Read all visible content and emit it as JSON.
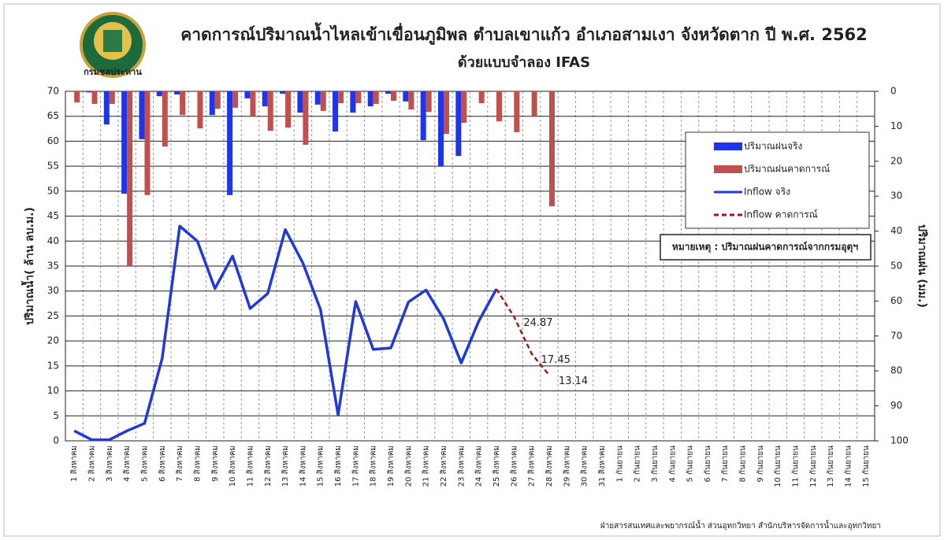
{
  "chart_data": {
    "type": "combo",
    "title": "คาดการณ์ปริมาณน้ำไหลเข้าเขื่อนภูมิพล ตำบลเขาแก้ว อำเภอสามเงา จังหวัดตาก ปี พ.ศ. 2562",
    "subtitle": "ด้วยแบบจำลอง IFAS",
    "logo_text": "กรมชลประทาน",
    "y_label": "ปริมาณน้ำ( ล้าน ลบ.ม.)",
    "y2_label": "ปริมาณฝน (มม.)",
    "note": "หมายเหตุ : ปริมาณฝนคาดการณ์จากกรมอุตุฯ",
    "footer": "ฝ่ายสารสนเทศและพยากรณ์น้ำ ส่วนอุทกวิทยา สำนักบริหารจัดการน้ำและอุทกวิทยา",
    "categories": [
      "1 สิงหาคม",
      "2 สิงหาคม",
      "3 สิงหาคม",
      "4 สิงหาคม",
      "5 สิงหาคม",
      "6 สิงหาคม",
      "7 สิงหาคม",
      "8 สิงหาคม",
      "9 สิงหาคม",
      "10 สิงหาคม",
      "11 สิงหาคม",
      "12 สิงหาคม",
      "13 สิงหาคม",
      "14 สิงหาคม",
      "15 สิงหาคม",
      "16 สิงหาคม",
      "17 สิงหาคม",
      "18 สิงหาคม",
      "19 สิงหาคม",
      "20 สิงหาคม",
      "21 สิงหาคม",
      "22 สิงหาคม",
      "23 สิงหาคม",
      "24 สิงหาคม",
      "25 สิงหาคม",
      "26 สิงหาคม",
      "27 สิงหาคม",
      "28 สิงหาคม",
      "29 สิงหาคม",
      "30 สิงหาคม",
      "31 สิงหาคม",
      "1 กันยายน",
      "2 กันยายน",
      "3 กันยายน",
      "4 กันยายน",
      "5 กันยายน",
      "6 กันยายน",
      "7 กันยายน",
      "8 กันยายน",
      "9 กันยายน",
      "10 กันยายน",
      "11 กันยายน",
      "12 กันยายน",
      "13 กันยายน",
      "14 กันยายน",
      "15 กันยายน"
    ],
    "ylim": [
      0,
      70
    ],
    "yticks": [
      0,
      5,
      10,
      15,
      20,
      25,
      30,
      35,
      40,
      45,
      50,
      55,
      60,
      65,
      70
    ],
    "y2lim": [
      100,
      0
    ],
    "y2ticks": [
      0,
      10,
      20,
      30,
      40,
      50,
      60,
      70,
      80,
      90,
      100
    ],
    "grid": true,
    "series": [
      {
        "name": "ปริมาณฝนจริง",
        "type": "bar",
        "axis": "y2",
        "color": "#1f35e6",
        "values": [
          0,
          0.3,
          9.5,
          29.3,
          13.7,
          1.4,
          0.9,
          0,
          6.8,
          29.7,
          2,
          4.3,
          0.7,
          6.1,
          3.8,
          11.5,
          6.1,
          4.3,
          0.7,
          2.9,
          14,
          21.4,
          18.5,
          null,
          null,
          null,
          null,
          null,
          null,
          null,
          null,
          null,
          null,
          null,
          null,
          null,
          null,
          null,
          null,
          null,
          null,
          null,
          null,
          null,
          null,
          null
        ]
      },
      {
        "name": "ปริมาณฝนคาดการณ์",
        "type": "bar",
        "axis": "y2",
        "color": "#c0504d",
        "values": [
          3.2,
          3.6,
          3.6,
          50,
          29.7,
          15.8,
          6.8,
          10.6,
          5,
          4.7,
          7,
          11.3,
          10.4,
          15.3,
          5.6,
          3.4,
          3.4,
          3.6,
          2.7,
          5.2,
          5.9,
          12.2,
          9,
          3.4,
          8.6,
          11.7,
          7,
          32.9,
          null,
          null,
          null,
          null,
          null,
          null,
          null,
          null,
          null,
          null,
          null,
          null,
          null,
          null,
          null,
          null,
          null,
          null
        ]
      },
      {
        "name": "Inflow จริง",
        "type": "line",
        "color": "#2239d9",
        "values": [
          2,
          0.2,
          0.2,
          2,
          3.5,
          16.5,
          43,
          40,
          30.5,
          37,
          26.5,
          29.5,
          42.3,
          35.6,
          26.3,
          5.2,
          27.9,
          18.3,
          18.6,
          27.8,
          30.2,
          24.4,
          15.6,
          24,
          30.4,
          null,
          null,
          null,
          null,
          null,
          null,
          null,
          null,
          null,
          null,
          null,
          null,
          null,
          null,
          null,
          null,
          null,
          null,
          null,
          null,
          null
        ]
      },
      {
        "name": "Inflow คาดการณ์",
        "type": "dashed",
        "color": "#a3151b",
        "values": [
          null,
          null,
          null,
          null,
          null,
          null,
          null,
          null,
          null,
          null,
          null,
          null,
          null,
          null,
          null,
          null,
          null,
          null,
          null,
          null,
          null,
          null,
          null,
          null,
          30.4,
          24.87,
          17.45,
          13.14,
          null,
          null,
          null,
          null,
          null,
          null,
          null,
          null,
          null,
          null,
          null,
          null,
          null,
          null,
          null,
          null,
          null,
          null
        ],
        "value_labels": [
          null,
          null,
          null,
          null,
          null,
          null,
          null,
          null,
          null,
          null,
          null,
          null,
          null,
          null,
          null,
          null,
          null,
          null,
          null,
          null,
          null,
          null,
          null,
          null,
          null,
          "24.87",
          "17.45",
          "13.14",
          null,
          null,
          null,
          null,
          null,
          null,
          null,
          null,
          null,
          null,
          null,
          null,
          null,
          null,
          null,
          null,
          null,
          null
        ]
      }
    ]
  }
}
